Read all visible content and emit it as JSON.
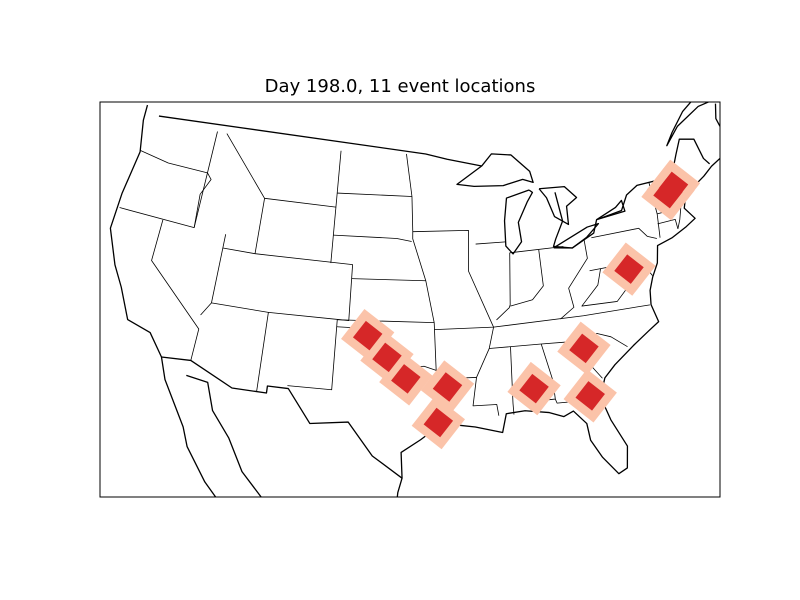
{
  "title": "Day 198.0, 11 event locations",
  "map": {
    "projection": "lambert-conformal-conic",
    "extent": {
      "lon_min": -119,
      "lat_min": 22,
      "lon_max": -64,
      "lat_max": 49
    },
    "colors": {
      "event_core": "#d62728",
      "event_halo": "#fbc3a9",
      "lines": "#000000"
    }
  },
  "events": [
    {
      "lat": 36.0,
      "lon": -100.3
    },
    {
      "lat": 34.5,
      "lon": -98.6
    },
    {
      "lat": 33.0,
      "lon": -97.0
    },
    {
      "lat": 32.4,
      "lon": -93.6
    },
    {
      "lat": 29.9,
      "lon": -94.4
    },
    {
      "lat": 31.9,
      "lon": -86.6
    },
    {
      "lat": 30.9,
      "lon": -82.2
    },
    {
      "lat": 34.3,
      "lon": -82.1
    },
    {
      "lat": 39.3,
      "lon": -77.0
    },
    {
      "lat": 43.9,
      "lon": -71.8
    },
    {
      "lat": 44.3,
      "lon": -71.1
    }
  ]
}
